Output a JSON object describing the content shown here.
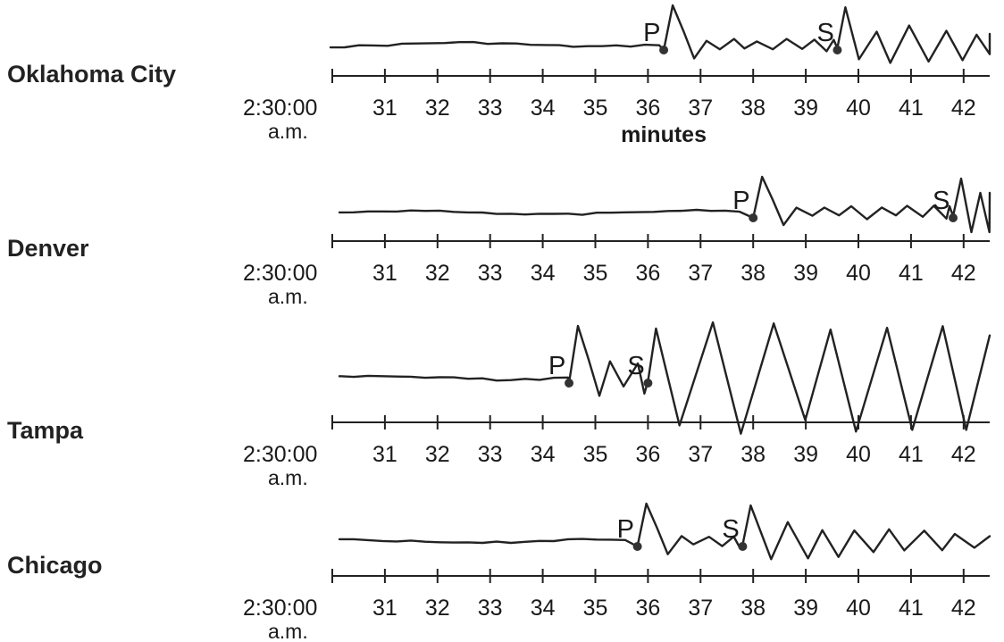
{
  "axis": {
    "start_label": "2:30:00",
    "start_sublabel": "a.m.",
    "unit_label": "minutes",
    "ticks": [
      30,
      31,
      32,
      33,
      34,
      35,
      36,
      37,
      38,
      39,
      40,
      41,
      42
    ],
    "tick_labels": [
      "31",
      "32",
      "33",
      "34",
      "35",
      "36",
      "37",
      "38",
      "39",
      "40",
      "41",
      "42"
    ],
    "range": [
      30,
      42.5
    ]
  },
  "stations": [
    {
      "id": "oklahoma-city",
      "name": "Oklahoma City",
      "p_arrival": 36.3,
      "s_arrival": 39.6,
      "p_label": "P",
      "s_label": "S",
      "show_unit_label": true
    },
    {
      "id": "denver",
      "name": "Denver",
      "p_arrival": 38.0,
      "s_arrival": 41.8,
      "p_label": "P",
      "s_label": "S",
      "show_unit_label": false
    },
    {
      "id": "tampa",
      "name": "Tampa",
      "p_arrival": 34.5,
      "s_arrival": 36.0,
      "p_label": "P",
      "s_label": "S",
      "show_unit_label": false
    },
    {
      "id": "chicago",
      "name": "Chicago",
      "p_arrival": 35.8,
      "s_arrival": 37.8,
      "p_label": "P",
      "s_label": "S",
      "show_unit_label": false
    }
  ]
}
